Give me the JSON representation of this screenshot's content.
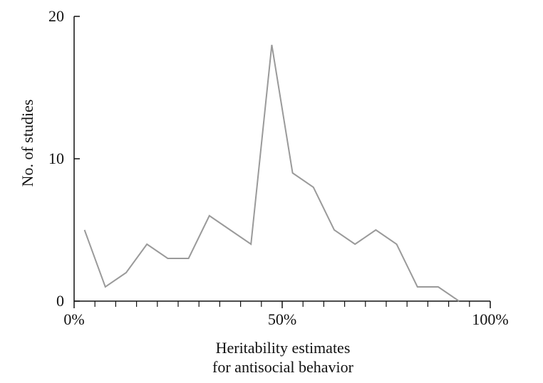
{
  "chart_data": {
    "type": "line",
    "title": "",
    "xlabel_lines": [
      "Heritability estimates",
      "for antisocial behavior"
    ],
    "ylabel": "No. of studies",
    "xlim": [
      0,
      100
    ],
    "ylim": [
      0,
      20
    ],
    "x_ticks": [
      {
        "value": 0,
        "label": "0%"
      },
      {
        "value": 50,
        "label": "50%"
      },
      {
        "value": 100,
        "label": "100%"
      }
    ],
    "x_minor_ticks": [
      5,
      10,
      15,
      20,
      25,
      30,
      35,
      40,
      45,
      55,
      60,
      65,
      70,
      75,
      80,
      85,
      90,
      95
    ],
    "y_ticks": [
      {
        "value": 0,
        "label": "0"
      },
      {
        "value": 10,
        "label": "10"
      },
      {
        "value": 20,
        "label": "20"
      }
    ],
    "grid": false,
    "line_color": "#9a9a9a",
    "axis_color": "#111111",
    "series": [
      {
        "x": [
          2.5,
          7.5,
          12.5,
          17.5,
          22.5,
          27.5,
          32.5,
          37.5,
          42.5,
          47.5,
          52.5,
          57.5,
          62.5,
          67.5,
          72.5,
          77.5,
          82.5,
          87.5,
          92.5
        ],
        "values": [
          5,
          1,
          2,
          4,
          3,
          3,
          6,
          5,
          4,
          18,
          9,
          8,
          5,
          4,
          5,
          4,
          1,
          1,
          0
        ]
      }
    ]
  }
}
